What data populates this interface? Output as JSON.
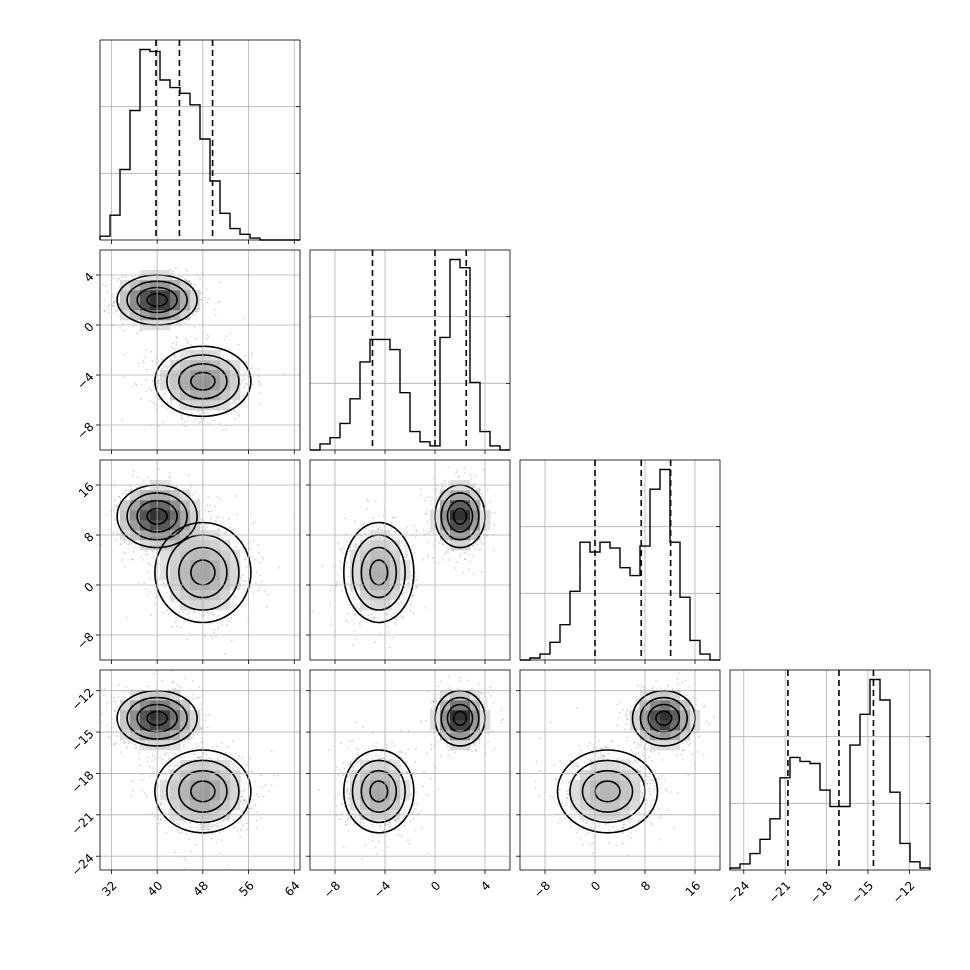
{
  "chart_data": {
    "type": "corner",
    "title": "",
    "parameters": [
      {
        "label": "",
        "range": [
          30,
          65
        ],
        "ticks": [
          32,
          40,
          48,
          56,
          64
        ],
        "tick_labels": [
          "32",
          "40",
          "48",
          "56",
          "64"
        ],
        "quantiles": [
          39.8,
          43.9,
          49.7
        ]
      },
      {
        "label": "",
        "range": [
          -10,
          6
        ],
        "ticks": [
          -8,
          -4,
          0,
          4
        ],
        "tick_labels": [
          "−8",
          "−4",
          "0",
          "4"
        ],
        "quantiles": [
          -5.0,
          0.0,
          2.5
        ]
      },
      {
        "label": "",
        "range": [
          -12,
          20
        ],
        "ticks": [
          -8,
          0,
          8,
          16
        ],
        "tick_labels": [
          "−8",
          "0",
          "8",
          "16"
        ],
        "quantiles": [
          0.0,
          7.4,
          12.1
        ]
      },
      {
        "label": "",
        "range": [
          -25,
          -10.5
        ],
        "ticks": [
          -24,
          -21,
          -18,
          -15,
          -12
        ],
        "tick_labels": [
          "−24",
          "−21",
          "−18",
          "−15",
          "−12"
        ],
        "quantiles": [
          -20.8,
          -17.1,
          -14.6
        ]
      }
    ],
    "histograms": [
      {
        "bin_edges": [
          30,
          31.75,
          33.5,
          35.25,
          37,
          38.75,
          40.5,
          42.25,
          44,
          45.75,
          47.5,
          49.25,
          51,
          52.75,
          54.5,
          56.25,
          58,
          59.75,
          61.5,
          63.25,
          65
        ],
        "counts": [
          0.02,
          0.13,
          0.37,
          0.68,
          1.0,
          0.99,
          0.84,
          0.8,
          0.77,
          0.71,
          0.53,
          0.31,
          0.14,
          0.06,
          0.03,
          0.01,
          0,
          0,
          0,
          0
        ]
      },
      {
        "bin_edges": [
          -10,
          -9.2,
          -8.4,
          -7.6,
          -6.8,
          -6,
          -5.2,
          -4.4,
          -3.6,
          -2.8,
          -2,
          -1.2,
          -0.4,
          0.4,
          1.2,
          2,
          2.8,
          3.6,
          4.4,
          5.2,
          6
        ],
        "counts": [
          0,
          0.03,
          0.06,
          0.13,
          0.25,
          0.43,
          0.54,
          0.54,
          0.49,
          0.28,
          0.09,
          0.04,
          0.02,
          0.55,
          0.93,
          0.89,
          0.33,
          0.09,
          0.02,
          0,
          0
        ]
      },
      {
        "bin_edges": [
          -12,
          -10.4,
          -8.8,
          -7.2,
          -5.6,
          -4,
          -2.4,
          -0.8,
          0.8,
          2.4,
          4,
          5.6,
          7.2,
          8.8,
          10.4,
          12,
          13.6,
          15.2,
          16.8,
          18.4,
          20
        ],
        "counts": [
          0,
          0.01,
          0.03,
          0.09,
          0.18,
          0.35,
          0.6,
          0.55,
          0.6,
          0.57,
          0.47,
          0.43,
          0.58,
          0.87,
          0.97,
          0.6,
          0.32,
          0.1,
          0.03,
          0,
          0
        ]
      },
      {
        "bin_edges": [
          -25,
          -24.275,
          -23.55,
          -22.825,
          -22.1,
          -21.375,
          -20.65,
          -19.925,
          -19.2,
          -18.475,
          -17.75,
          -17.025,
          -16.3,
          -15.575,
          -14.85,
          -14.125,
          -13.4,
          -12.675,
          -11.95,
          -11.225,
          -10.5
        ],
        "counts": [
          0.01,
          0.03,
          0.08,
          0.15,
          0.25,
          0.45,
          0.55,
          0.53,
          0.52,
          0.39,
          0.31,
          0.31,
          0.61,
          0.76,
          0.93,
          0.83,
          0.38,
          0.13,
          0.04,
          0.01,
          0
        ]
      }
    ],
    "modes": [
      {
        "weight": 0.55,
        "mean": [
          40,
          2,
          11,
          -14
        ],
        "sd": [
          3.5,
          1.0,
          2.5,
          1.0
        ]
      },
      {
        "weight": 0.45,
        "mean": [
          48,
          -4.5,
          2,
          -19.3
        ],
        "sd": [
          4.2,
          1.4,
          4.0,
          1.5
        ]
      }
    ],
    "grid": true,
    "quantile_line_style": "dashed",
    "colors": {
      "line": "#000000",
      "points": "#888888",
      "density_max": "#333333",
      "grid": "#b0b0b0"
    }
  }
}
